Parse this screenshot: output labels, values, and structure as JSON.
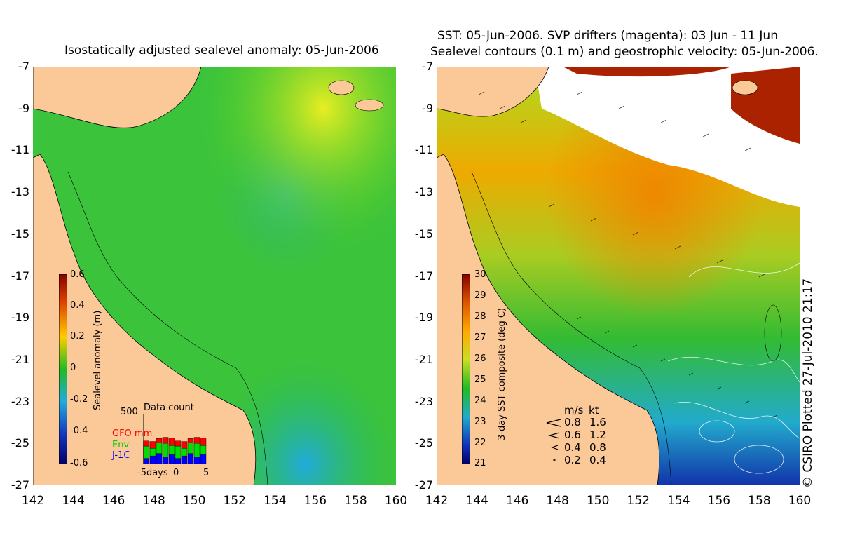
{
  "left": {
    "title": "Isostatically adjusted sealevel anomaly: 05-Jun-2006",
    "colorbar_label": "Sealevel anomaly (m)",
    "colorbar_ticks": [
      "0.6",
      "0.4",
      "0.2",
      "0",
      "-0.2",
      "-0.4",
      "-0.6"
    ],
    "data_count": {
      "title": "Data count",
      "max": "500",
      "legend": [
        {
          "label": "GFO mm",
          "color": "#ff0000"
        },
        {
          "label": "Env",
          "color": "#00dd00"
        },
        {
          "label": "J-1C",
          "color": "#0000ff"
        }
      ],
      "x_labels": [
        "-5days",
        "0",
        "5"
      ]
    }
  },
  "right": {
    "title_line1": "SST: 05-Jun-2006. SVP drifters (magenta): 03 Jun - 11 Jun",
    "title_line2": "Sealevel contours (0.1 m) and geostrophic velocity: 05-Jun-2006.",
    "colorbar_label": "3-day SST composite (deg C)",
    "colorbar_ticks": [
      "30",
      "29",
      "28",
      "27",
      "26",
      "25",
      "24",
      "23",
      "22",
      "21"
    ],
    "velocity_legend": {
      "header_ms": "m/s",
      "header_kt": "kt",
      "rows": [
        {
          "ms": "0.8",
          "kt": "1.6"
        },
        {
          "ms": "0.6",
          "kt": "1.2"
        },
        {
          "ms": "0.4",
          "kt": "0.8"
        },
        {
          "ms": "0.2",
          "kt": "0.4"
        }
      ]
    },
    "credit": "© CSIRO Plotted 27-Jul-2010 21:17"
  },
  "axes": {
    "lat_labels": [
      "-7",
      "-9",
      "-11",
      "-13",
      "-15",
      "-17",
      "-19",
      "-21",
      "-23",
      "-25",
      "-27"
    ],
    "lon_labels": [
      "142",
      "144",
      "146",
      "148",
      "150",
      "152",
      "154",
      "156",
      "158",
      "160"
    ]
  },
  "colors": {
    "land": "#fbc898",
    "sea_green": "#22bb22",
    "sst_orange": "#ee9900",
    "sst_blue": "#1144cc"
  }
}
